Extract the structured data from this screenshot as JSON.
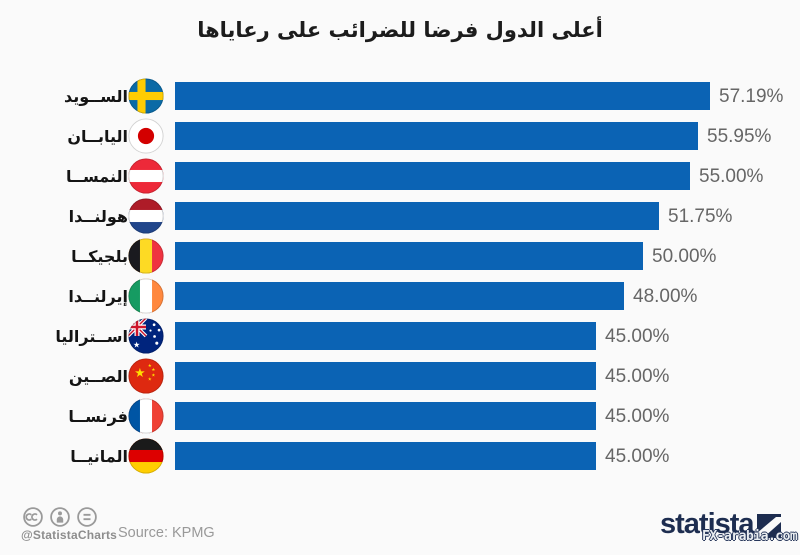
{
  "title": "أعلى الدول فرضا للضرائب على رعاياها",
  "chart_data": {
    "type": "bar",
    "orientation": "horizontal",
    "title": "أعلى الدول فرضا للضرائب على رعاياها",
    "value_unit": "%",
    "xlim": [
      0,
      60
    ],
    "grid": false,
    "legend": false,
    "bar_color": "#0b63b4",
    "categories": [
      "الســويد",
      "اليابــان",
      "النمســا",
      "هولنــدا",
      "بلجيكــا",
      "إيرلنــدا",
      "اســتراليا",
      "الصــين",
      "فرنســا",
      "المانيــا"
    ],
    "values": [
      57.19,
      55.95,
      55.0,
      51.75,
      50.0,
      48.0,
      45.0,
      45.0,
      45.0,
      45.0
    ],
    "rows": [
      {
        "label": "الســويد",
        "flag": "flag-sweden-icon",
        "value": 57.19,
        "display": "57.19%"
      },
      {
        "label": "اليابــان",
        "flag": "flag-japan-icon",
        "value": 55.95,
        "display": "55.95%"
      },
      {
        "label": "النمســا",
        "flag": "flag-austria-icon",
        "value": 55.0,
        "display": "55.00%"
      },
      {
        "label": "هولنــدا",
        "flag": "flag-netherlands-icon",
        "value": 51.75,
        "display": "51.75%"
      },
      {
        "label": "بلجيكــا",
        "flag": "flag-belgium-icon",
        "value": 50.0,
        "display": "50.00%"
      },
      {
        "label": "إيرلنــدا",
        "flag": "flag-ireland-icon",
        "value": 48.0,
        "display": "48.00%"
      },
      {
        "label": "اســتراليا",
        "flag": "flag-australia-icon",
        "value": 45.0,
        "display": "45.00%"
      },
      {
        "label": "الصــين",
        "flag": "flag-china-icon",
        "value": 45.0,
        "display": "45.00%"
      },
      {
        "label": "فرنســا",
        "flag": "flag-france-icon",
        "value": 45.0,
        "display": "45.00%"
      },
      {
        "label": "المانيــا",
        "flag": "flag-germany-icon",
        "value": 45.0,
        "display": "45.00%"
      }
    ]
  },
  "footer": {
    "cc_icons": [
      "cc-icon",
      "attribution-icon",
      "equal-icon"
    ],
    "credit": "@StatistaCharts",
    "source": "Source: KPMG",
    "brand": "statista",
    "watermark": "FX-arabia.com"
  },
  "colors": {
    "background": "#fafafa",
    "bar": "#0b63b4",
    "title_text": "#1c1c1c",
    "value_text": "#666666",
    "footer_text": "#999999",
    "brand_navy": "#1d2d50"
  }
}
